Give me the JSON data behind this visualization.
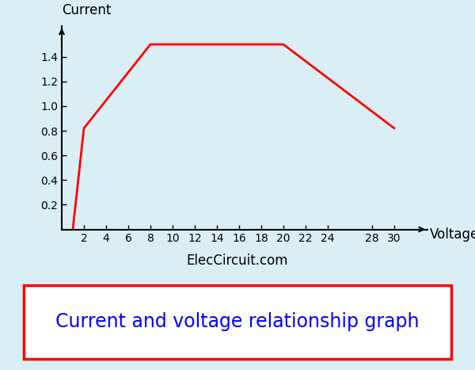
{
  "x_data": [
    1,
    2,
    8,
    20,
    30
  ],
  "y_data": [
    0.0,
    0.82,
    1.5,
    1.5,
    0.82
  ],
  "line_color": "#ff0000",
  "line_width": 2.0,
  "background_color": "#d9eef5",
  "title_box_bg": "#ffffff",
  "x_ticks": [
    2,
    4,
    6,
    8,
    10,
    12,
    14,
    16,
    18,
    20,
    22,
    24,
    28,
    30
  ],
  "y_ticks": [
    0.2,
    0.4,
    0.6,
    0.8,
    1.0,
    1.2,
    1.4
  ],
  "x_label": "Voltage",
  "y_label": "Current",
  "x_lim": [
    0,
    33
  ],
  "y_lim": [
    0,
    1.65
  ],
  "website_text": "ElecCircuit.com",
  "title_text": "Current and voltage relationship graph",
  "title_color": "#0000ff",
  "title_box_color": "#ff0000",
  "title_fontsize": 17,
  "axis_label_fontsize": 12,
  "tick_fontsize": 10,
  "website_fontsize": 12
}
